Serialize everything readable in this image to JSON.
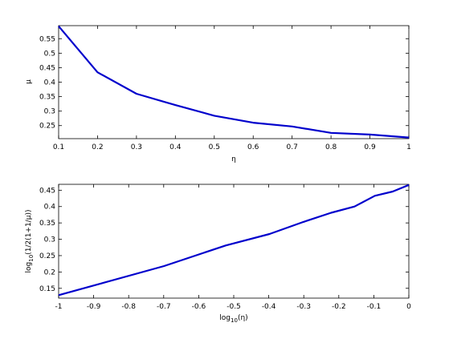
{
  "figure": {
    "background": "#ffffff",
    "line_color": "#0000cc",
    "axis_color": "#000000"
  },
  "chart_data": [
    {
      "type": "line",
      "xlabel": "η",
      "ylabel": "μ",
      "xlim": [
        0.1,
        1
      ],
      "ylim": [
        0.205,
        0.595
      ],
      "xticks": [
        0.1,
        0.2,
        0.3,
        0.4,
        0.5,
        0.6,
        0.7,
        0.8,
        0.9,
        1
      ],
      "xtick_labels": [
        "0.1",
        "0.2",
        "0.3",
        "0.4",
        "0.5",
        "0.6",
        "0.7",
        "0.8",
        "0.9",
        "1"
      ],
      "yticks": [
        0.25,
        0.3,
        0.35,
        0.4,
        0.45,
        0.5,
        0.55
      ],
      "ytick_labels": [
        "0.25",
        "0.3",
        "0.35",
        "0.4",
        "0.45",
        "0.5",
        "0.55"
      ],
      "grid": false,
      "series": [
        {
          "x": [
            0.1,
            0.2,
            0.3,
            0.4,
            0.5,
            0.6,
            0.7,
            0.8,
            0.9,
            1.0
          ],
          "y": [
            0.593,
            0.434,
            0.36,
            0.321,
            0.284,
            0.26,
            0.247,
            0.225,
            0.219,
            0.209
          ]
        }
      ]
    },
    {
      "type": "line",
      "xlabel_main": "log",
      "xlabel_sub": "10",
      "xlabel_rest": "(η)",
      "ylabel_main": "log",
      "ylabel_sub": "10",
      "ylabel_rest": "(1/2(1+1/μ))",
      "xlim": [
        -1,
        0
      ],
      "ylim": [
        0.12,
        0.468
      ],
      "xticks": [
        -1,
        -0.9,
        -0.8,
        -0.7,
        -0.6,
        -0.5,
        -0.4,
        -0.3,
        -0.2,
        -0.1,
        0
      ],
      "xtick_labels": [
        "-1",
        "-0.9",
        "-0.8",
        "-0.7",
        "-0.6",
        "-0.5",
        "-0.4",
        "-0.3",
        "-0.2",
        "-0.1",
        "0"
      ],
      "yticks": [
        0.15,
        0.2,
        0.25,
        0.3,
        0.35,
        0.4,
        0.45
      ],
      "ytick_labels": [
        "0.15",
        "0.2",
        "0.25",
        "0.3",
        "0.35",
        "0.4",
        "0.45"
      ],
      "grid": false,
      "series": [
        {
          "x": [
            -1.0,
            -0.699,
            -0.523,
            -0.398,
            -0.301,
            -0.222,
            -0.155,
            -0.097,
            -0.046,
            0.0
          ],
          "y": [
            0.129,
            0.218,
            0.281,
            0.316,
            0.353,
            0.381,
            0.4,
            0.433,
            0.446,
            0.466
          ]
        }
      ]
    }
  ]
}
